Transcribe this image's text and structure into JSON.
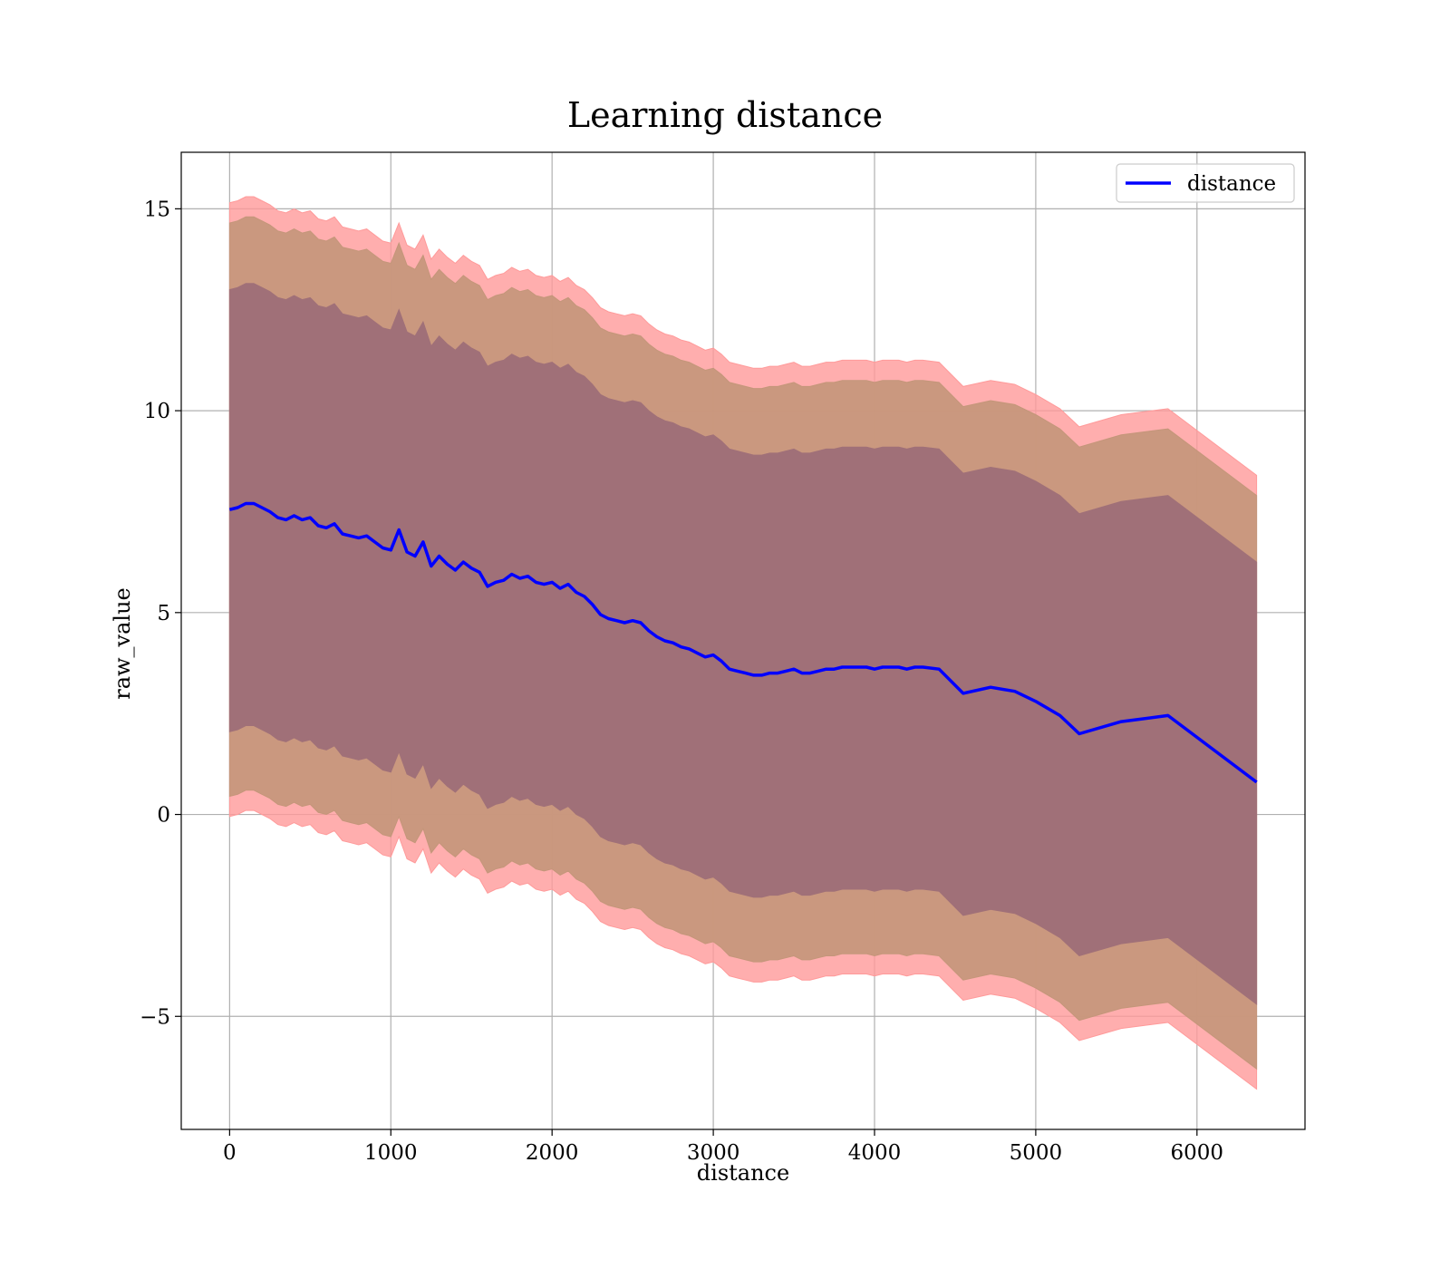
{
  "chart_data": {
    "type": "line",
    "title": "Learning distance",
    "xlabel": "distance",
    "ylabel": "raw_value",
    "xlim": [
      -300,
      6670
    ],
    "ylim": [
      -7.8,
      16.4
    ],
    "xticks": [
      0,
      1000,
      2000,
      3000,
      4000,
      5000,
      6000
    ],
    "yticks": [
      -5,
      0,
      5,
      10,
      15
    ],
    "xtick_labels": [
      "0",
      "1000",
      "2000",
      "3000",
      "4000",
      "5000",
      "6000"
    ],
    "ytick_labels": [
      "−5",
      "0",
      "5",
      "10",
      "15"
    ],
    "grid": true,
    "legend": {
      "position": "top-right",
      "entries": [
        "distance"
      ]
    },
    "colors": {
      "line": "#0000ff",
      "band_outer": "#ff9a9a",
      "band_middle": "#c4967a",
      "band_inner": "#a07078"
    },
    "x": [
      0,
      50,
      100,
      150,
      200,
      250,
      300,
      350,
      400,
      450,
      500,
      550,
      600,
      650,
      700,
      750,
      800,
      850,
      900,
      950,
      1000,
      1050,
      1100,
      1150,
      1200,
      1250,
      1300,
      1350,
      1400,
      1450,
      1500,
      1550,
      1600,
      1650,
      1700,
      1750,
      1800,
      1850,
      1900,
      1950,
      2000,
      2050,
      2100,
      2150,
      2200,
      2250,
      2300,
      2350,
      2400,
      2450,
      2500,
      2550,
      2600,
      2650,
      2700,
      2750,
      2800,
      2850,
      2900,
      2950,
      3000,
      3050,
      3100,
      3150,
      3200,
      3250,
      3300,
      3350,
      3400,
      3450,
      3500,
      3550,
      3600,
      3650,
      3700,
      3750,
      3800,
      3850,
      3900,
      3950,
      4000,
      4050,
      4100,
      4150,
      4200,
      4250,
      4300,
      4400,
      4550,
      4720,
      4870,
      5000,
      5150,
      5270,
      5530,
      5820,
      6370
    ],
    "series": [
      {
        "name": "distance",
        "values": [
          7.55,
          7.6,
          7.7,
          7.7,
          7.6,
          7.5,
          7.35,
          7.3,
          7.4,
          7.3,
          7.35,
          7.15,
          7.1,
          7.2,
          6.95,
          6.9,
          6.85,
          6.9,
          6.75,
          6.6,
          6.55,
          7.05,
          6.5,
          6.4,
          6.75,
          6.15,
          6.4,
          6.2,
          6.05,
          6.25,
          6.1,
          6.0,
          5.65,
          5.75,
          5.8,
          5.95,
          5.85,
          5.9,
          5.75,
          5.7,
          5.75,
          5.6,
          5.7,
          5.5,
          5.4,
          5.2,
          4.95,
          4.85,
          4.8,
          4.75,
          4.8,
          4.75,
          4.55,
          4.4,
          4.3,
          4.25,
          4.15,
          4.1,
          4.0,
          3.9,
          3.95,
          3.8,
          3.6,
          3.55,
          3.5,
          3.45,
          3.45,
          3.5,
          3.5,
          3.55,
          3.6,
          3.5,
          3.5,
          3.55,
          3.6,
          3.6,
          3.65,
          3.65,
          3.65,
          3.65,
          3.6,
          3.65,
          3.65,
          3.65,
          3.6,
          3.65,
          3.65,
          3.6,
          3.0,
          3.15,
          3.05,
          2.8,
          2.45,
          2.0,
          2.3,
          2.45,
          0.8
        ]
      }
    ],
    "bands": {
      "outer": {
        "upper_offset": 7.6,
        "lower_offset": 7.6
      },
      "middle": {
        "upper_offset": 7.1,
        "lower_offset": 7.1
      },
      "inner": {
        "upper_offset": 5.45,
        "lower_offset": 5.5
      }
    }
  }
}
